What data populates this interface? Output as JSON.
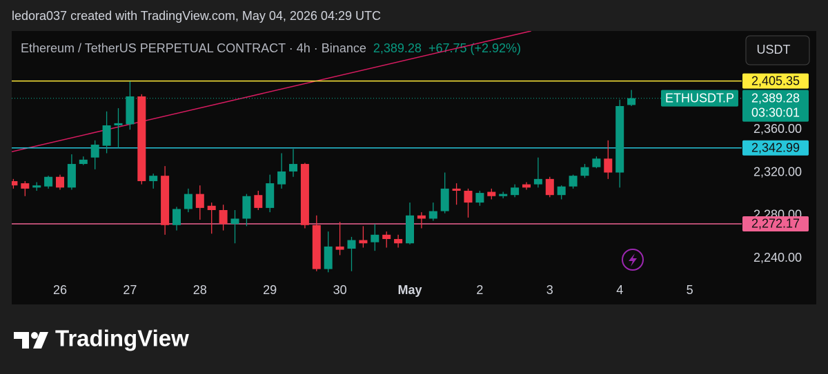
{
  "header": {
    "attribution": "ledora037 created with TradingView.com, May 04, 2026 04:29 UTC",
    "symbol": "Ethereum / TetherUS PERPETUAL CONTRACT · 4h · Binance",
    "last": "2,389.28",
    "change": "+67.75 (+2.92%)",
    "currency_button": "USDT"
  },
  "footer": {
    "brand": "TradingView"
  },
  "chart_data": {
    "type": "candlestick",
    "categories": [
      null,
      null,
      null,
      null,
      "26",
      null,
      null,
      null,
      null,
      null,
      "27",
      null,
      null,
      null,
      null,
      null,
      "28",
      null,
      null,
      null,
      null,
      null,
      "29",
      null,
      null,
      null,
      null,
      null,
      "30",
      null,
      null,
      null,
      null,
      null,
      "May",
      null,
      null,
      null,
      null,
      null,
      "2",
      null,
      null,
      null,
      null,
      null,
      "3",
      null,
      null,
      null,
      null,
      null,
      "4",
      null,
      null,
      null,
      null,
      null,
      "5"
    ],
    "open": [
      2312,
      2310,
      2306,
      2307,
      2316,
      2306,
      2328,
      2334,
      2345,
      2364,
      2365,
      2391,
      2312,
      2317,
      2271,
      2286,
      2300,
      2289,
      2285,
      2272,
      2277,
      2299,
      2287,
      2309,
      2321,
      2328,
      2271,
      2230,
      2251,
      2249,
      2257,
      2255,
      2262,
      2258,
      2254,
      2280,
      2277,
      2284,
      2305,
      2303,
      2292,
      2302,
      2298,
      2299,
      2309,
      2309,
      2314,
      2299,
      2307,
      2317,
      2325,
      2333,
      2320,
      2383,
      null,
      null,
      null,
      null,
      null
    ],
    "high": [
      2314,
      2312,
      2311,
      2317,
      2318,
      2337,
      2335,
      2350,
      2377,
      2380,
      2405,
      2393,
      2319,
      2326,
      2288,
      2305,
      2308,
      2292,
      2290,
      2285,
      2300,
      2303,
      2318,
      2338,
      2342,
      2329,
      2280,
      2265,
      2274,
      2260,
      2270,
      2272,
      2265,
      2262,
      2292,
      2283,
      2292,
      2320,
      2310,
      2305,
      2303,
      2305,
      2302,
      2309,
      2311,
      2334,
      2316,
      2308,
      2318,
      2328,
      2335,
      2350,
      2388,
      2397,
      null,
      null,
      null,
      null,
      null
    ],
    "low": [
      2305,
      2298,
      2303,
      2305,
      2304,
      2304,
      2327,
      2323,
      2338,
      2343,
      2360,
      2309,
      2305,
      2262,
      2266,
      2283,
      2276,
      2263,
      2266,
      2254,
      2270,
      2285,
      2283,
      2305,
      2316,
      2268,
      2228,
      2227,
      2243,
      2228,
      2250,
      2247,
      2250,
      2250,
      2253,
      2268,
      2275,
      2282,
      2290,
      2278,
      2289,
      2295,
      2296,
      2297,
      2304,
      2306,
      2297,
      2295,
      2305,
      2315,
      2324,
      2314,
      2306,
      2382,
      null,
      null,
      null,
      null,
      null
    ],
    "close": [
      2308,
      2305,
      2308,
      2316,
      2306,
      2328,
      2332,
      2346,
      2364,
      2366,
      2391,
      2312,
      2317,
      2271,
      2286,
      2300,
      2287,
      2285,
      2272,
      2277,
      2298,
      2287,
      2310,
      2321,
      2328,
      2271,
      2230,
      2251,
      2248,
      2257,
      2254,
      2262,
      2258,
      2254,
      2280,
      2277,
      2284,
      2305,
      2303,
      2292,
      2301,
      2298,
      2300,
      2306,
      2306,
      2314,
      2299,
      2307,
      2317,
      2325,
      2333,
      2320,
      2382,
      2389.28,
      null,
      null,
      null,
      null,
      null
    ],
    "up_color": "#089981",
    "down_color": "#f23645",
    "ylim": [
      2197,
      2452
    ],
    "yticks": [
      {
        "value": 2240,
        "label": "2,240.00"
      },
      {
        "value": 2280,
        "label": "2,280.00"
      },
      {
        "value": 2320,
        "label": "2,320.00"
      },
      {
        "value": 2360,
        "label": "2,360.00"
      }
    ],
    "grid": false,
    "levels": [
      {
        "value": 2405.35,
        "label": "2,405.35",
        "color": "#ffeb3b"
      },
      {
        "value": 2342.99,
        "label": "2,342.99",
        "color": "#26c6da"
      },
      {
        "value": 2272.17,
        "label": "2,272.17",
        "color": "#f06292"
      }
    ],
    "last_price": {
      "value": 2389.28,
      "label": "2,389.28",
      "countdown": "03:30:01",
      "symbol": "ETHUSDT.P"
    },
    "trend_line": {
      "x": [
        -0.14,
        44.4
      ],
      "y": [
        2339.4,
        2452
      ],
      "color": "#d81b60"
    }
  }
}
